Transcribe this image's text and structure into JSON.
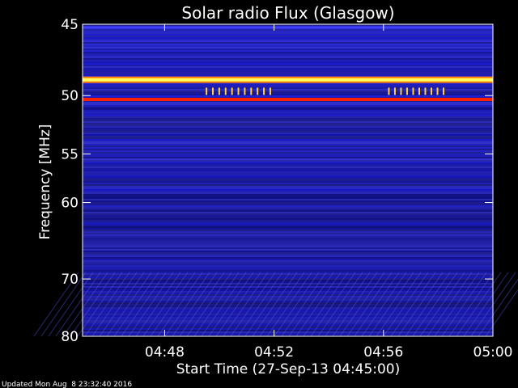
{
  "chart_data": {
    "type": "heatmap",
    "title": "Solar radio Flux (Glasgow)",
    "xlabel": "Start Time (27-Sep-13 04:45:00)",
    "ylabel": "Frequency [MHz]",
    "x_ticks": [
      "04:48",
      "04:52",
      "04:56",
      "05:00"
    ],
    "x_tick_values": [
      "04:48",
      "04:52",
      "04:56",
      "05:00"
    ],
    "xlim": [
      "04:45:00",
      "05:00:00"
    ],
    "y_ticks": [
      45,
      50,
      55,
      60,
      70,
      80
    ],
    "ylim": [
      45,
      80
    ],
    "y_scale": "reciprocal",
    "colormap": [
      "#000050",
      "#0000c8",
      "#2a2aff",
      "#ff0000",
      "#ffa000",
      "#ffff60"
    ],
    "features": [
      {
        "kind": "persistent-line",
        "freq_mhz": 48.8,
        "color": "#ffff60",
        "intensity": "very high"
      },
      {
        "kind": "persistent-line",
        "freq_mhz": 50.3,
        "color": "#ff2000",
        "intensity": "high"
      },
      {
        "kind": "bursts",
        "freq_mhz": 49.7,
        "time_start": "04:49:30",
        "time_end": "04:51:50",
        "count": 11,
        "color": "#ffd040"
      },
      {
        "kind": "bursts",
        "freq_mhz": 49.7,
        "time_start": "04:56:10",
        "time_end": "04:58:10",
        "count": 10,
        "color": "#ffd040"
      },
      {
        "kind": "band",
        "freq_mhz": 45.2,
        "color": "#4040ff"
      },
      {
        "kind": "band",
        "freq_mhz": 47.0,
        "color": "#2020b0"
      }
    ]
  },
  "footer": {
    "updated": "Updated Mon Aug  8 23:32:40 2016"
  }
}
